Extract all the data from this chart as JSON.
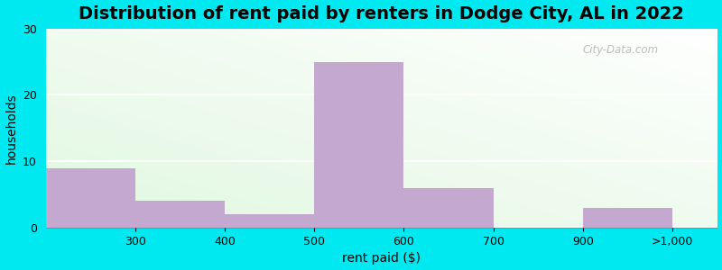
{
  "title": "Distribution of rent paid by renters in Dodge City, AL in 2022",
  "xlabel": "rent paid ($)",
  "ylabel": "households",
  "bar_labels": [
    "300",
    "400",
    "500",
    "600",
    "700",
    "900",
    ">1,000"
  ],
  "bar_heights": [
    9,
    4,
    2,
    25,
    6,
    0,
    3
  ],
  "bar_color": "#c4a8d0",
  "ylim": [
    0,
    30
  ],
  "yticks": [
    0,
    10,
    20,
    30
  ],
  "background_outer": "#00e8f0",
  "title_fontsize": 14,
  "axis_label_fontsize": 10,
  "tick_fontsize": 9,
  "bar_left_edges": [
    0,
    1,
    2,
    3,
    4,
    5,
    6
  ],
  "bar_widths": [
    1,
    1,
    1,
    1,
    1,
    1,
    1
  ],
  "xtick_positions": [
    1,
    2,
    3,
    4,
    5,
    6,
    7
  ],
  "xlim": [
    0,
    7.5
  ],
  "watermark": "City-Data.com"
}
